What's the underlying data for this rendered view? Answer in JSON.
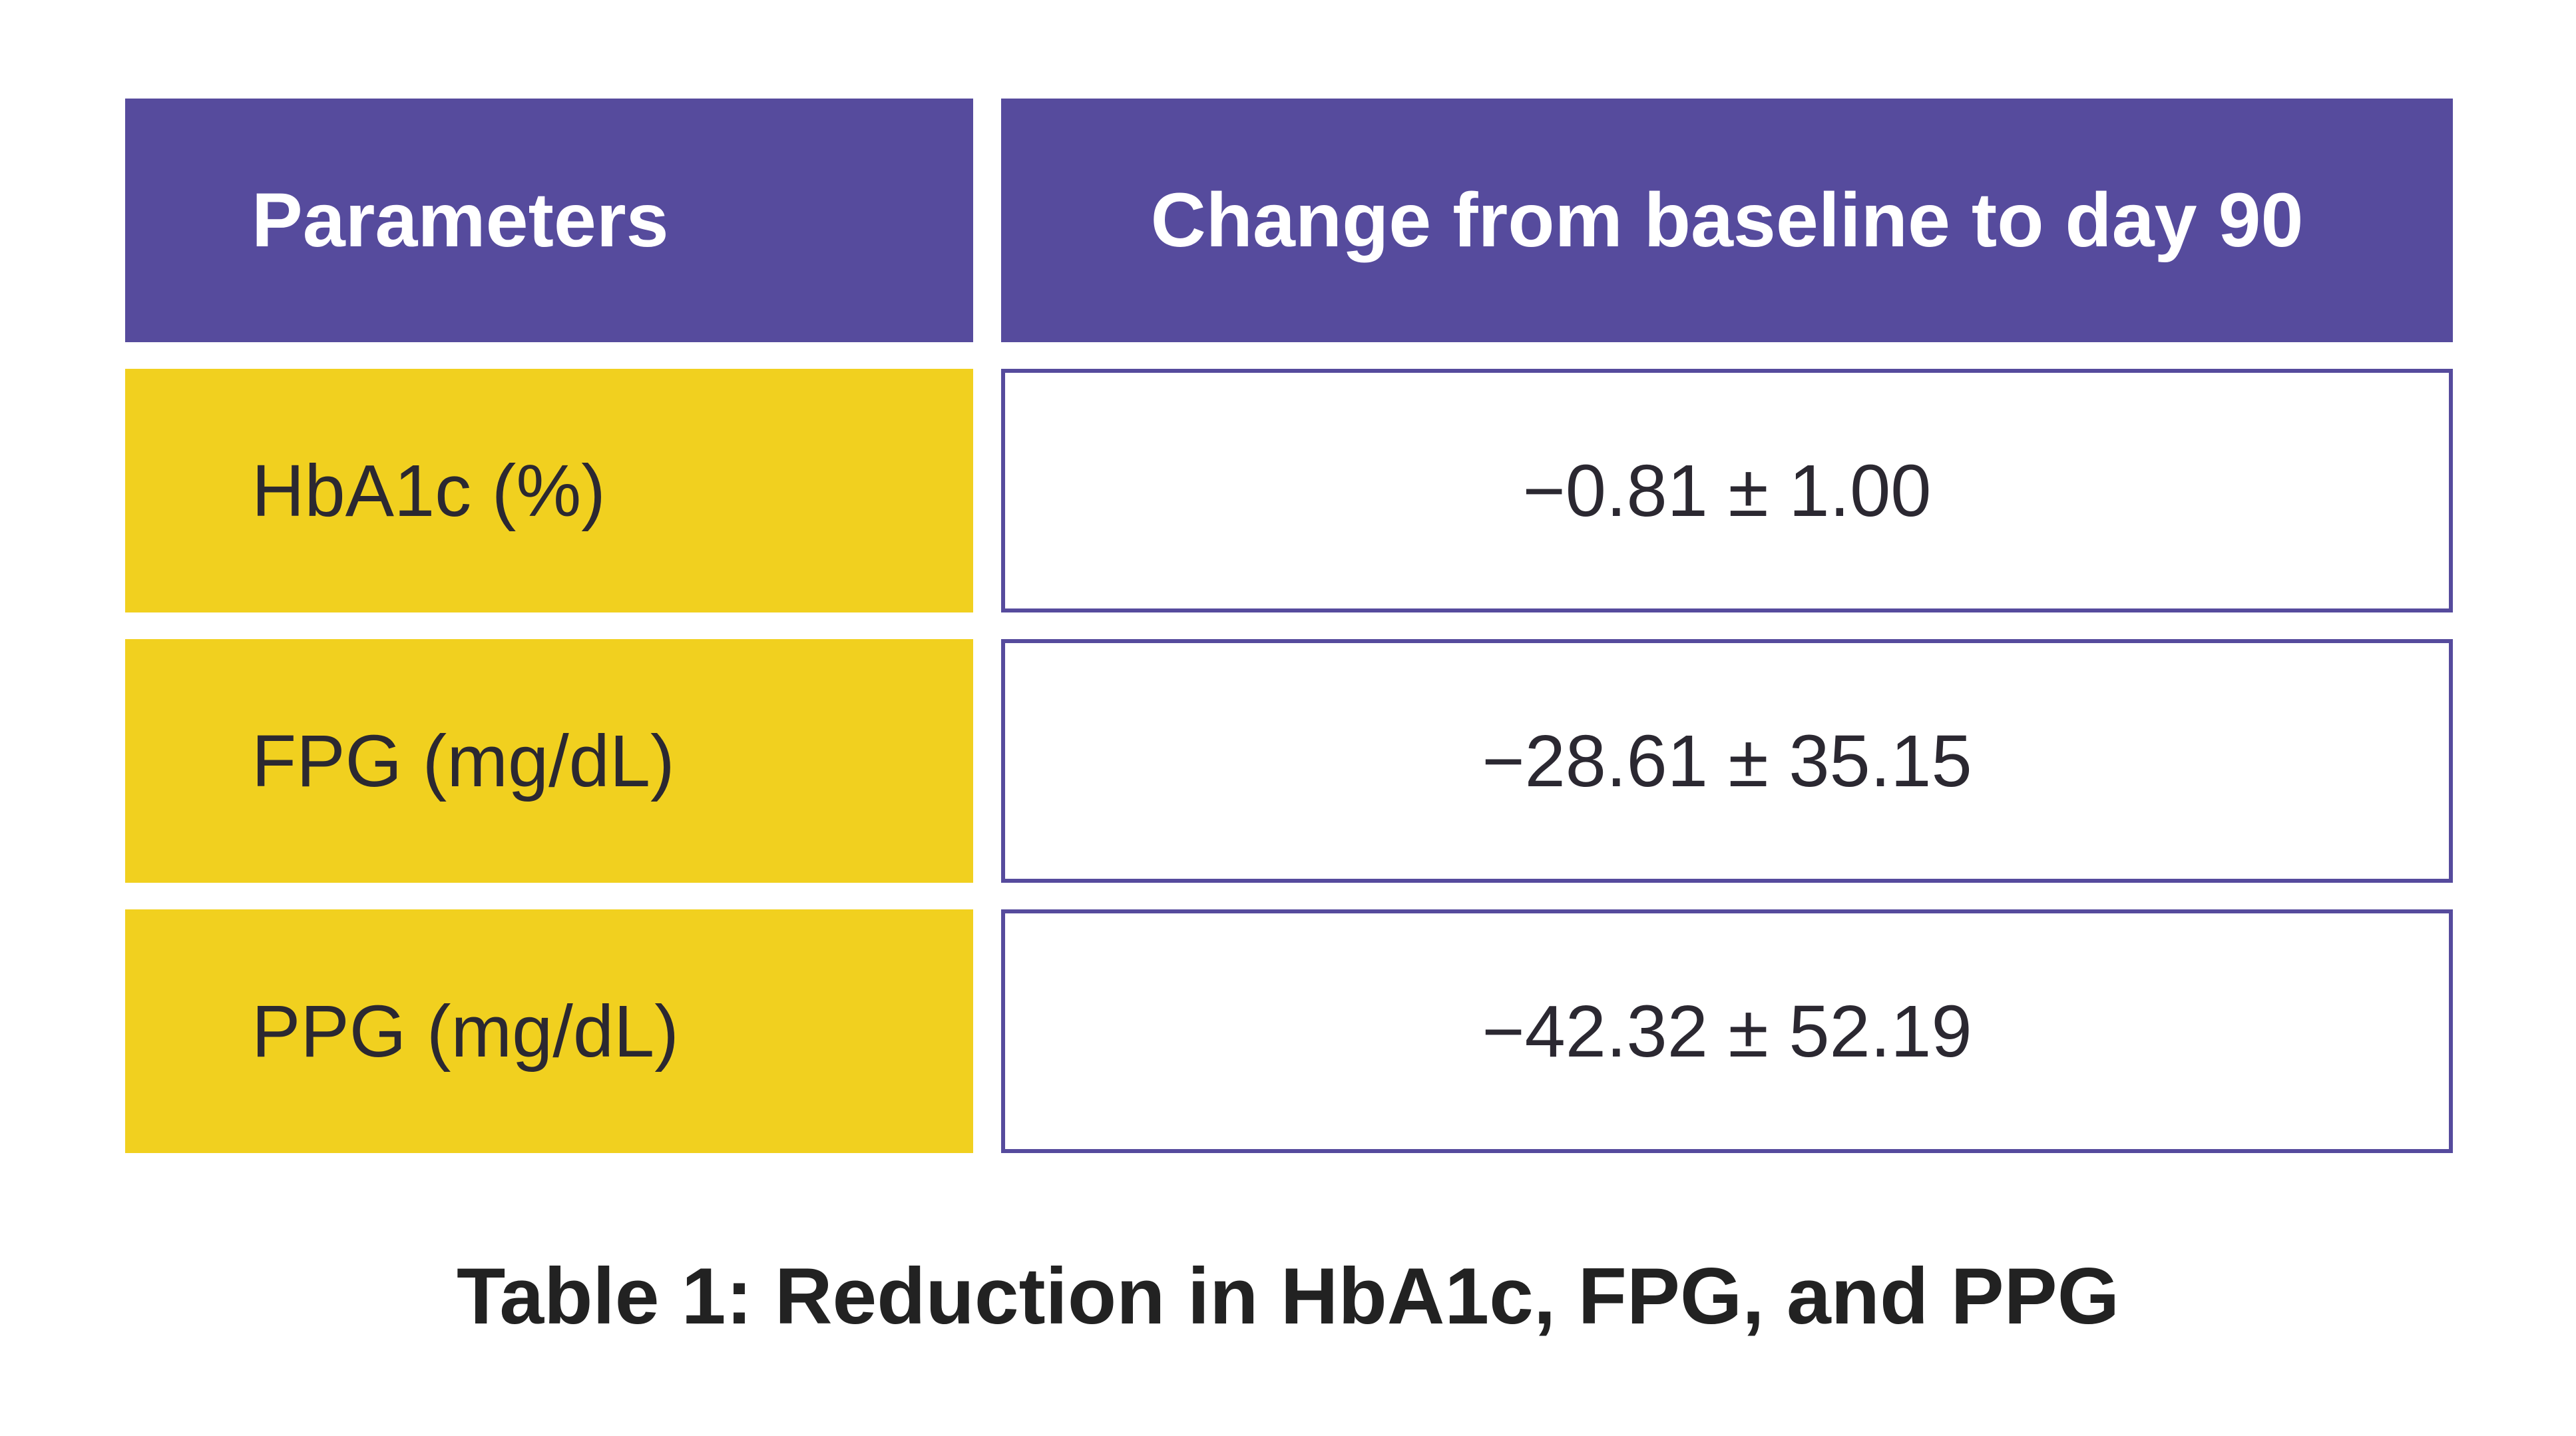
{
  "table": {
    "header": {
      "parameters_label": "Parameters",
      "change_label": "Change from baseline to day 90"
    },
    "rows": [
      {
        "parameter": "HbA1c (%)",
        "change": "−0.81 ± 1.00"
      },
      {
        "parameter": "FPG (mg/dL)",
        "change": "−28.61 ± 35.15"
      },
      {
        "parameter": "PPG (mg/dL)",
        "change": "−42.32 ± 52.19"
      }
    ],
    "caption": "Table 1: Reduction in HbA1c, FPG, and PPG"
  },
  "colors": {
    "header_bg": "#564B9D",
    "param_cell_bg": "#F1D01F",
    "value_cell_border": "#564B9D",
    "header_text": "#FFFFFF",
    "body_text": "#2B2831",
    "caption_text": "#222222",
    "page_bg": "#FFFFFF"
  },
  "chart_data": {
    "type": "table",
    "title": "Table 1: Reduction in HbA1c, FPG, and PPG",
    "columns": [
      "Parameters",
      "Change from baseline to day 90"
    ],
    "rows": [
      [
        "HbA1c (%)",
        "−0.81 ± 1.00"
      ],
      [
        "FPG (mg/dL)",
        "−28.61 ± 35.15"
      ],
      [
        "PPG (mg/dL)",
        "−42.32 ± 52.19"
      ]
    ],
    "series": [
      {
        "name": "HbA1c",
        "unit": "%",
        "mean_change": -0.81,
        "sd": 1.0
      },
      {
        "name": "FPG",
        "unit": "mg/dL",
        "mean_change": -28.61,
        "sd": 35.15
      },
      {
        "name": "PPG",
        "unit": "mg/dL",
        "mean_change": -42.32,
        "sd": 52.19
      }
    ]
  }
}
